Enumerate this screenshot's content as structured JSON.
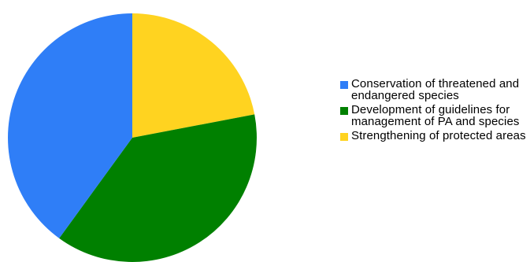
{
  "chart_data": {
    "type": "pie",
    "categories": [
      "Conservation of threatened and endangered species",
      "Development of guidelines for management of PA and species",
      "Strengthening of protected areas"
    ],
    "values": [
      40,
      38,
      22
    ],
    "unit": "percent",
    "colors": [
      "#2f7ef7",
      "#008000",
      "#ffd320"
    ],
    "legend_placement": "right",
    "title": ""
  },
  "legend": {
    "items": [
      {
        "label": "Conservation of threatened and endangered species",
        "color": "#2f7ef7"
      },
      {
        "label": "Development of guidelines for management of PA and species",
        "color": "#008000"
      },
      {
        "label": "Strengthening of protected areas",
        "color": "#ffd320"
      }
    ]
  }
}
